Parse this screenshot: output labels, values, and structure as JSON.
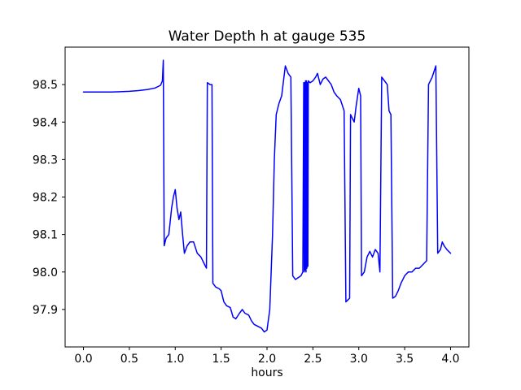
{
  "figure": {
    "background": "#ffffff"
  },
  "chart_data": {
    "type": "line",
    "title": "Water Depth h at gauge 535",
    "xlabel": "hours",
    "ylabel": "",
    "legend": null,
    "grid": false,
    "line_color": "#0000ff",
    "axis_color": "#000000",
    "xlim": [
      -0.2,
      4.2
    ],
    "ylim": [
      97.8,
      98.6
    ],
    "xticks": [
      0.0,
      0.5,
      1.0,
      1.5,
      2.0,
      2.5,
      3.0,
      3.5,
      4.0
    ],
    "xtick_labels": [
      "0.0",
      "0.5",
      "1.0",
      "1.5",
      "2.0",
      "2.5",
      "3.0",
      "3.5",
      "4.0"
    ],
    "yticks": [
      97.9,
      98.0,
      98.1,
      98.2,
      98.3,
      98.4,
      98.5
    ],
    "ytick_labels": [
      "97.9",
      "98.0",
      "98.1",
      "98.2",
      "98.3",
      "98.4",
      "98.5"
    ],
    "points": [
      [
        0.0,
        98.48
      ],
      [
        0.1,
        98.48
      ],
      [
        0.2,
        98.48
      ],
      [
        0.3,
        98.48
      ],
      [
        0.4,
        98.481
      ],
      [
        0.5,
        98.482
      ],
      [
        0.6,
        98.484
      ],
      [
        0.7,
        98.487
      ],
      [
        0.78,
        98.491
      ],
      [
        0.84,
        98.498
      ],
      [
        0.86,
        98.51
      ],
      [
        0.87,
        98.565
      ],
      [
        0.88,
        98.07
      ],
      [
        0.9,
        98.09
      ],
      [
        0.93,
        98.1
      ],
      [
        0.96,
        98.17
      ],
      [
        0.98,
        98.2
      ],
      [
        1.0,
        98.22
      ],
      [
        1.02,
        98.17
      ],
      [
        1.04,
        98.14
      ],
      [
        1.06,
        98.16
      ],
      [
        1.08,
        98.1
      ],
      [
        1.1,
        98.05
      ],
      [
        1.13,
        98.07
      ],
      [
        1.16,
        98.08
      ],
      [
        1.2,
        98.08
      ],
      [
        1.24,
        98.05
      ],
      [
        1.28,
        98.04
      ],
      [
        1.32,
        98.02
      ],
      [
        1.34,
        98.01
      ],
      [
        1.35,
        98.505
      ],
      [
        1.38,
        98.5
      ],
      [
        1.4,
        98.5
      ],
      [
        1.41,
        97.97
      ],
      [
        1.44,
        97.96
      ],
      [
        1.48,
        97.955
      ],
      [
        1.5,
        97.95
      ],
      [
        1.53,
        97.92
      ],
      [
        1.56,
        97.91
      ],
      [
        1.6,
        97.905
      ],
      [
        1.63,
        97.88
      ],
      [
        1.66,
        97.875
      ],
      [
        1.7,
        97.89
      ],
      [
        1.73,
        97.9
      ],
      [
        1.76,
        97.89
      ],
      [
        1.8,
        97.885
      ],
      [
        1.83,
        97.87
      ],
      [
        1.86,
        97.86
      ],
      [
        1.9,
        97.855
      ],
      [
        1.94,
        97.85
      ],
      [
        1.97,
        97.84
      ],
      [
        2.0,
        97.845
      ],
      [
        2.03,
        97.9
      ],
      [
        2.06,
        98.1
      ],
      [
        2.08,
        98.3
      ],
      [
        2.1,
        98.42
      ],
      [
        2.13,
        98.45
      ],
      [
        2.16,
        98.47
      ],
      [
        2.2,
        98.55
      ],
      [
        2.23,
        98.53
      ],
      [
        2.26,
        98.52
      ],
      [
        2.28,
        97.99
      ],
      [
        2.31,
        97.98
      ],
      [
        2.34,
        97.985
      ],
      [
        2.37,
        97.99
      ],
      [
        2.39,
        98.0
      ],
      [
        2.4,
        98.505
      ],
      [
        2.405,
        98.0
      ],
      [
        2.41,
        98.505
      ],
      [
        2.415,
        98.005
      ],
      [
        2.42,
        98.51
      ],
      [
        2.425,
        98.0
      ],
      [
        2.43,
        98.51
      ],
      [
        2.435,
        98.01
      ],
      [
        2.44,
        98.505
      ],
      [
        2.445,
        98.015
      ],
      [
        2.45,
        98.51
      ],
      [
        2.47,
        98.505
      ],
      [
        2.5,
        98.51
      ],
      [
        2.53,
        98.52
      ],
      [
        2.55,
        98.53
      ],
      [
        2.58,
        98.5
      ],
      [
        2.61,
        98.515
      ],
      [
        2.64,
        98.52
      ],
      [
        2.67,
        98.51
      ],
      [
        2.7,
        98.5
      ],
      [
        2.73,
        98.48
      ],
      [
        2.76,
        98.47
      ],
      [
        2.8,
        98.46
      ],
      [
        2.84,
        98.43
      ],
      [
        2.86,
        97.92
      ],
      [
        2.88,
        97.925
      ],
      [
        2.9,
        97.93
      ],
      [
        2.91,
        98.42
      ],
      [
        2.93,
        98.41
      ],
      [
        2.95,
        98.4
      ],
      [
        2.97,
        98.44
      ],
      [
        3.0,
        98.49
      ],
      [
        3.02,
        98.47
      ],
      [
        3.03,
        97.99
      ],
      [
        3.06,
        98.0
      ],
      [
        3.09,
        98.04
      ],
      [
        3.12,
        98.055
      ],
      [
        3.15,
        98.04
      ],
      [
        3.18,
        98.06
      ],
      [
        3.21,
        98.05
      ],
      [
        3.23,
        98.0
      ],
      [
        3.25,
        98.52
      ],
      [
        3.28,
        98.51
      ],
      [
        3.31,
        98.5
      ],
      [
        3.33,
        98.43
      ],
      [
        3.35,
        98.42
      ],
      [
        3.37,
        97.93
      ],
      [
        3.4,
        97.935
      ],
      [
        3.43,
        97.95
      ],
      [
        3.46,
        97.97
      ],
      [
        3.5,
        97.99
      ],
      [
        3.54,
        98.0
      ],
      [
        3.58,
        98.0
      ],
      [
        3.62,
        98.01
      ],
      [
        3.66,
        98.01
      ],
      [
        3.7,
        98.02
      ],
      [
        3.74,
        98.03
      ],
      [
        3.76,
        98.5
      ],
      [
        3.8,
        98.52
      ],
      [
        3.84,
        98.55
      ],
      [
        3.86,
        98.05
      ],
      [
        3.89,
        98.06
      ],
      [
        3.91,
        98.08
      ],
      [
        3.93,
        98.07
      ],
      [
        3.96,
        98.06
      ],
      [
        4.0,
        98.05
      ]
    ]
  }
}
